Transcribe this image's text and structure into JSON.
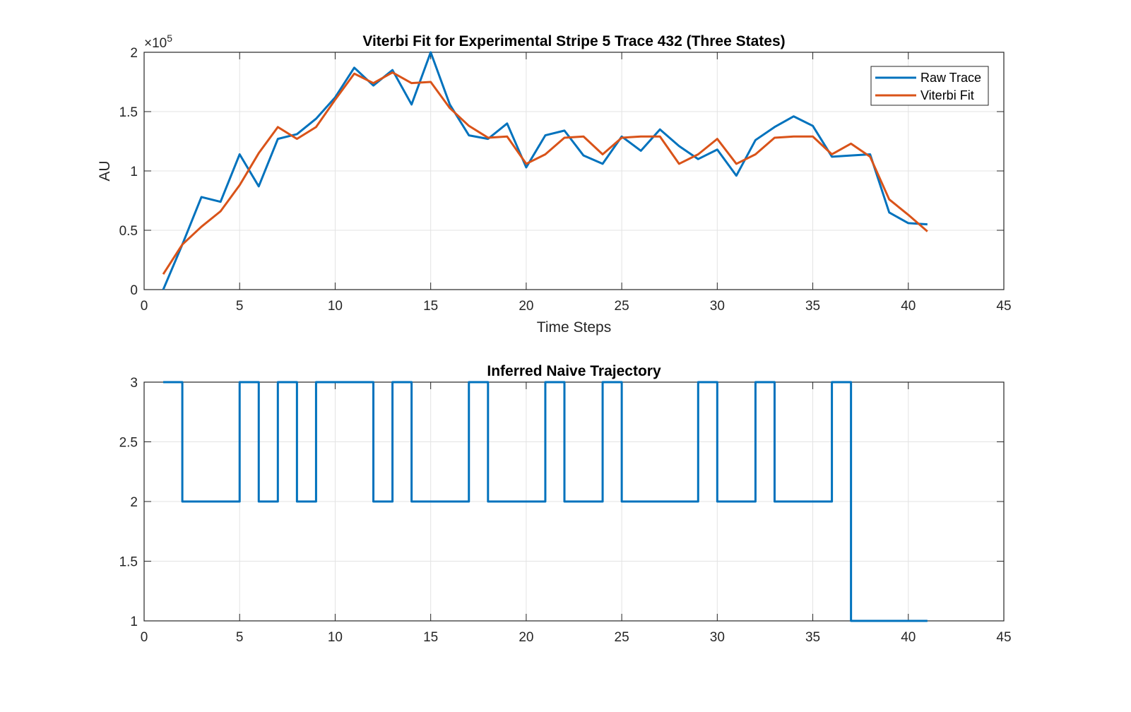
{
  "chart_data": [
    {
      "type": "line",
      "title": "Viterbi Fit for Experimental Stripe 5 Trace 432 (Three States)",
      "xlabel": "Time Steps",
      "ylabel": "AU",
      "y_exponent_label": "×10",
      "y_exponent_power": "5",
      "xlim": [
        0,
        45
      ],
      "ylim": [
        0,
        2
      ],
      "x_ticks": [
        "0",
        "5",
        "10",
        "15",
        "20",
        "25",
        "30",
        "35",
        "40",
        "45"
      ],
      "y_ticks": [
        "0",
        "0.5",
        "1",
        "1.5",
        "2"
      ],
      "grid": true,
      "legend_position": "top-right",
      "x": [
        1,
        2,
        3,
        4,
        5,
        6,
        7,
        8,
        9,
        10,
        11,
        12,
        13,
        14,
        15,
        16,
        17,
        18,
        19,
        20,
        21,
        22,
        23,
        24,
        25,
        26,
        27,
        28,
        29,
        30,
        31,
        32,
        33,
        34,
        35,
        36,
        37,
        38,
        39,
        40,
        41
      ],
      "series": [
        {
          "name": "Raw Trace",
          "color": "#0072BD",
          "values": [
            0.0,
            0.38,
            0.78,
            0.74,
            1.14,
            0.87,
            1.27,
            1.31,
            1.44,
            1.62,
            1.87,
            1.72,
            1.85,
            1.56,
            2.0,
            1.56,
            1.3,
            1.27,
            1.4,
            1.03,
            1.3,
            1.34,
            1.13,
            1.06,
            1.29,
            1.17,
            1.35,
            1.21,
            1.1,
            1.18,
            0.96,
            1.26,
            1.37,
            1.46,
            1.38,
            1.12,
            1.13,
            1.14,
            0.65,
            0.56,
            0.55
          ]
        },
        {
          "name": "Viterbi Fit",
          "color": "#D95319",
          "values": [
            0.13,
            0.38,
            0.53,
            0.66,
            0.88,
            1.15,
            1.37,
            1.27,
            1.37,
            1.6,
            1.82,
            1.74,
            1.83,
            1.74,
            1.75,
            1.53,
            1.38,
            1.28,
            1.29,
            1.06,
            1.14,
            1.28,
            1.29,
            1.14,
            1.28,
            1.29,
            1.29,
            1.06,
            1.14,
            1.27,
            1.06,
            1.14,
            1.28,
            1.29,
            1.29,
            1.14,
            1.23,
            1.12,
            0.76,
            0.63,
            0.49
          ]
        }
      ]
    },
    {
      "type": "line",
      "title": "Inferred Naive Trajectory",
      "xlabel": "",
      "ylabel": "",
      "xlim": [
        0,
        45
      ],
      "ylim": [
        1,
        3
      ],
      "x_ticks": [
        "0",
        "5",
        "10",
        "15",
        "20",
        "25",
        "30",
        "35",
        "40",
        "45"
      ],
      "y_ticks": [
        "1",
        "1.5",
        "2",
        "2.5",
        "3"
      ],
      "grid": true,
      "step": true,
      "x": [
        1,
        2,
        3,
        4,
        5,
        6,
        7,
        8,
        9,
        10,
        11,
        12,
        13,
        14,
        15,
        16,
        17,
        18,
        19,
        20,
        21,
        22,
        23,
        24,
        25,
        26,
        27,
        28,
        29,
        30,
        31,
        32,
        33,
        34,
        35,
        36,
        37,
        38,
        39,
        40,
        41
      ],
      "series": [
        {
          "name": "",
          "color": "#0072BD",
          "values": [
            3,
            2,
            2,
            2,
            3,
            2,
            3,
            2,
            3,
            3,
            3,
            2,
            3,
            2,
            2,
            2,
            3,
            2,
            2,
            2,
            3,
            2,
            2,
            3,
            2,
            2,
            2,
            2,
            3,
            2,
            2,
            3,
            2,
            2,
            2,
            3,
            1,
            1,
            1,
            1,
            1
          ]
        }
      ]
    }
  ]
}
